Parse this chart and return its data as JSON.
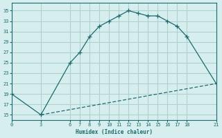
{
  "xlabel": "Humidex (Indice chaleur)",
  "ylabel": "",
  "bg_color": "#d6eeee",
  "grid_color": "#b0d0d0",
  "line_color": "#1a6b6b",
  "line1_x": [
    0,
    3,
    6,
    7,
    8,
    9,
    10,
    11,
    12,
    13,
    14,
    15,
    16,
    17,
    18,
    21
  ],
  "line1_y": [
    19,
    15,
    25,
    27,
    30,
    32,
    33,
    34,
    35,
    34.5,
    34,
    34,
    33,
    32,
    30,
    21
  ],
  "line2_x": [
    3,
    21
  ],
  "line2_y": [
    15,
    21
  ],
  "yticks": [
    15,
    17,
    19,
    21,
    23,
    25,
    27,
    29,
    31,
    33,
    35
  ],
  "xticks": [
    0,
    3,
    6,
    7,
    8,
    9,
    10,
    11,
    12,
    13,
    14,
    15,
    16,
    17,
    18,
    21
  ],
  "xlim": [
    0,
    21
  ],
  "ylim": [
    14,
    36.5
  ]
}
